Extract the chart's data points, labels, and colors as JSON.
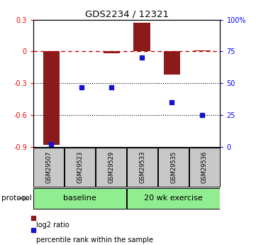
{
  "title": "GDS2234 / 12321",
  "samples": [
    "GSM29507",
    "GSM29523",
    "GSM29529",
    "GSM29533",
    "GSM29535",
    "GSM29536"
  ],
  "log2_ratio": [
    -0.88,
    0.0,
    -0.02,
    0.27,
    -0.22,
    0.01
  ],
  "percentile_rank": [
    2,
    47,
    47,
    70,
    35,
    25
  ],
  "ylim_left": [
    -0.9,
    0.3
  ],
  "ylim_right": [
    0,
    100
  ],
  "yticks_left": [
    -0.9,
    -0.6,
    -0.3,
    0.0,
    0.3
  ],
  "ytick_labels_left": [
    "-0.9",
    "-0.6",
    "-0.3",
    "0",
    "0.3"
  ],
  "yticks_right": [
    0,
    25,
    50,
    75,
    100
  ],
  "ytick_labels_right": [
    "0",
    "25",
    "50",
    "75",
    "100%"
  ],
  "dotted_lines": [
    -0.3,
    -0.6
  ],
  "bar_color": "#8B1A1A",
  "dot_color": "#1515CC",
  "hline_color": "#CC0000",
  "group_label_baseline": "baseline",
  "group_label_exercise": "20 wk exercise",
  "protocol_label": "protocol",
  "legend_red": "log2 ratio",
  "legend_blue": "percentile rank within the sample",
  "baseline_color": "#90EE90",
  "sample_box_color": "#C8C8C8",
  "bar_width": 0.55
}
